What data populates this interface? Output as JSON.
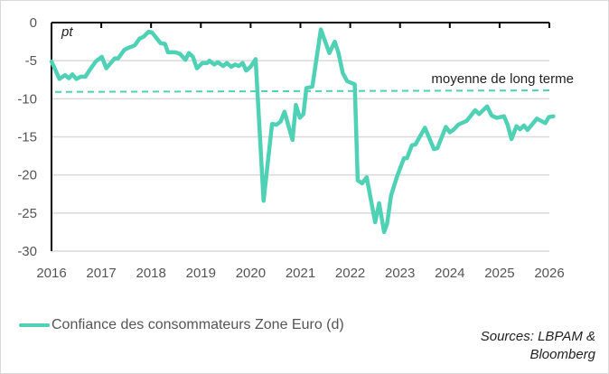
{
  "chart_data": {
    "type": "line",
    "unit_label": "pt",
    "xlim": [
      2016,
      2026
    ],
    "ylim": [
      -30,
      0
    ],
    "x_ticks": [
      "2016",
      "2017",
      "2018",
      "2019",
      "2020",
      "2021",
      "2022",
      "2023",
      "2024",
      "2025",
      "2026"
    ],
    "y_ticks": [
      "0",
      "-5",
      "-10",
      "-15",
      "-20",
      "-25",
      "-30"
    ],
    "grid": true,
    "series": [
      {
        "name": "Confiance des consommateurs Zone Euro (d)",
        "color": "#4fd1b5",
        "points": [
          [
            2016.0,
            -5.1
          ],
          [
            2016.16,
            -7.4
          ],
          [
            2016.27,
            -6.9
          ],
          [
            2016.35,
            -7.3
          ],
          [
            2016.42,
            -6.8
          ],
          [
            2016.5,
            -7.4
          ],
          [
            2016.59,
            -7.1
          ],
          [
            2016.68,
            -7.1
          ],
          [
            2016.77,
            -6.2
          ],
          [
            2016.89,
            -5.1
          ],
          [
            2017.01,
            -4.5
          ],
          [
            2017.1,
            -6.0
          ],
          [
            2017.27,
            -4.7
          ],
          [
            2017.34,
            -4.7
          ],
          [
            2017.46,
            -3.6
          ],
          [
            2017.55,
            -3.3
          ],
          [
            2017.67,
            -3.0
          ],
          [
            2017.77,
            -2.1
          ],
          [
            2017.86,
            -1.8
          ],
          [
            2017.95,
            -1.2
          ],
          [
            2018.02,
            -1.3
          ],
          [
            2018.19,
            -2.7
          ],
          [
            2018.28,
            -2.8
          ],
          [
            2018.34,
            -3.9
          ],
          [
            2018.49,
            -3.9
          ],
          [
            2018.58,
            -4.1
          ],
          [
            2018.69,
            -4.9
          ],
          [
            2018.76,
            -4.0
          ],
          [
            2018.84,
            -4.5
          ],
          [
            2018.92,
            -6.0
          ],
          [
            2019.03,
            -5.3
          ],
          [
            2019.13,
            -5.3
          ],
          [
            2019.17,
            -5.0
          ],
          [
            2019.27,
            -5.5
          ],
          [
            2019.34,
            -5.2
          ],
          [
            2019.45,
            -5.7
          ],
          [
            2019.52,
            -5.3
          ],
          [
            2019.61,
            -5.8
          ],
          [
            2019.69,
            -5.5
          ],
          [
            2019.76,
            -5.7
          ],
          [
            2019.84,
            -5.3
          ],
          [
            2019.91,
            -6.3
          ],
          [
            2020.0,
            -5.8
          ],
          [
            2020.1,
            -4.8
          ],
          [
            2020.26,
            -23.4
          ],
          [
            2020.43,
            -13.3
          ],
          [
            2020.52,
            -13.4
          ],
          [
            2020.6,
            -13.0
          ],
          [
            2020.68,
            -11.7
          ],
          [
            2020.84,
            -15.4
          ],
          [
            2020.91,
            -10.8
          ],
          [
            2020.99,
            -12.5
          ],
          [
            2021.06,
            -12.0
          ],
          [
            2021.12,
            -8.6
          ],
          [
            2021.24,
            -8.4
          ],
          [
            2021.41,
            -0.9
          ],
          [
            2021.58,
            -4.0
          ],
          [
            2021.69,
            -2.5
          ],
          [
            2021.76,
            -3.9
          ],
          [
            2021.85,
            -6.6
          ],
          [
            2021.94,
            -7.7
          ],
          [
            2022.09,
            -8.1
          ],
          [
            2022.15,
            -20.7
          ],
          [
            2022.24,
            -21.1
          ],
          [
            2022.33,
            -20.3
          ],
          [
            2022.5,
            -26.2
          ],
          [
            2022.58,
            -23.7
          ],
          [
            2022.68,
            -27.5
          ],
          [
            2022.74,
            -26.4
          ],
          [
            2022.82,
            -22.7
          ],
          [
            2022.94,
            -20.2
          ],
          [
            2023.08,
            -17.8
          ],
          [
            2023.14,
            -17.8
          ],
          [
            2023.24,
            -16.1
          ],
          [
            2023.31,
            -16.0
          ],
          [
            2023.5,
            -13.8
          ],
          [
            2023.68,
            -16.6
          ],
          [
            2023.75,
            -16.5
          ],
          [
            2023.92,
            -13.7
          ],
          [
            2024.0,
            -14.4
          ],
          [
            2024.07,
            -14.1
          ],
          [
            2024.17,
            -13.4
          ],
          [
            2024.27,
            -13.1
          ],
          [
            2024.34,
            -12.9
          ],
          [
            2024.51,
            -11.5
          ],
          [
            2024.59,
            -12.0
          ],
          [
            2024.75,
            -11.0
          ],
          [
            2024.84,
            -12.2
          ],
          [
            2024.94,
            -12.5
          ],
          [
            2025.09,
            -12.3
          ],
          [
            2025.16,
            -13.4
          ],
          [
            2025.24,
            -15.3
          ],
          [
            2025.34,
            -13.6
          ],
          [
            2025.41,
            -14.0
          ],
          [
            2025.49,
            -13.5
          ],
          [
            2025.56,
            -14.1
          ],
          [
            2025.75,
            -12.6
          ],
          [
            2025.92,
            -13.2
          ],
          [
            2025.99,
            -12.4
          ],
          [
            2026.08,
            -12.3
          ]
        ]
      }
    ],
    "reference_line": {
      "label": "moyenne de long terme",
      "start": -9.1,
      "end": -8.9,
      "style": "dashed"
    },
    "legend_placement": "bottom-left"
  },
  "legend_label": "Confiance des consommateurs Zone Euro (d)",
  "sources": {
    "line1": "Sources: LBPAM &",
    "line2": "Bloomberg"
  }
}
